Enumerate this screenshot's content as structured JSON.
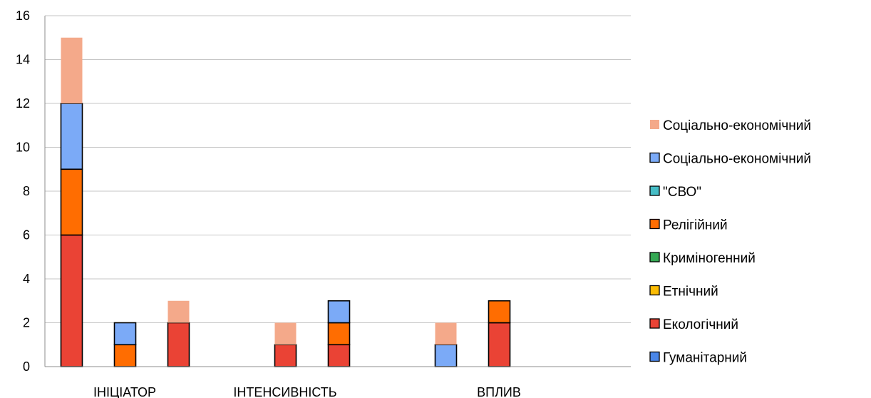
{
  "chart_data": {
    "type": "bar",
    "stacked": true,
    "ylim": [
      0,
      16
    ],
    "yticks": [
      0,
      2,
      4,
      6,
      8,
      10,
      12,
      14,
      16
    ],
    "grid": true,
    "legend_position": "right",
    "category_labels": [
      "ІНІЦІАТОР",
      "ІНТЕНСИВНІСТЬ",
      "ВПЛИВ"
    ],
    "slots": [
      {
        "group": 0,
        "series": 0
      },
      {
        "group": 0,
        "series": 1
      },
      {
        "group": 0,
        "series": 2
      },
      {
        "group": 1,
        "series": 0
      },
      {
        "group": 1,
        "series": 1
      },
      {
        "group": 1,
        "series": 2
      },
      {
        "group": 2,
        "series": 0
      },
      {
        "group": 2,
        "series": 1
      },
      {
        "group": 2,
        "series": 2
      }
    ],
    "segments": [
      {
        "name": "Гуманітарний",
        "color": "#4a86e8",
        "outlined": true,
        "values": [
          0,
          0,
          0,
          0,
          0,
          0,
          0,
          0,
          0
        ]
      },
      {
        "name": "Екологічний",
        "color": "#ea4335",
        "outlined": true,
        "values": [
          6,
          0,
          2,
          0,
          1,
          1,
          0,
          0,
          2
        ]
      },
      {
        "name": "Етнічний",
        "color": "#fbbc04",
        "outlined": true,
        "values": [
          0,
          0,
          0,
          0,
          0,
          0,
          0,
          0,
          0
        ]
      },
      {
        "name": "Криміногенний",
        "color": "#34a853",
        "outlined": true,
        "values": [
          0,
          0,
          0,
          0,
          0,
          0,
          0,
          0,
          0
        ]
      },
      {
        "name": "Релігійний",
        "color": "#ff6d01",
        "outlined": true,
        "values": [
          3,
          1,
          0,
          0,
          0,
          1,
          0,
          0,
          1
        ]
      },
      {
        "name": "\"СВО\"",
        "color": "#46bdc6",
        "outlined": true,
        "values": [
          0,
          0,
          0,
          0,
          0,
          0,
          0,
          0,
          0
        ]
      },
      {
        "name": "Соціально-економічний",
        "color": "#7baaf7",
        "outlined": true,
        "values": [
          3,
          1,
          0,
          0,
          0,
          1,
          0,
          1,
          0
        ]
      },
      {
        "name": "Соціально-економічний",
        "color": "#f4a98a",
        "outlined": false,
        "values": [
          3,
          0,
          1,
          0,
          1,
          0,
          0,
          1,
          0
        ]
      }
    ]
  }
}
